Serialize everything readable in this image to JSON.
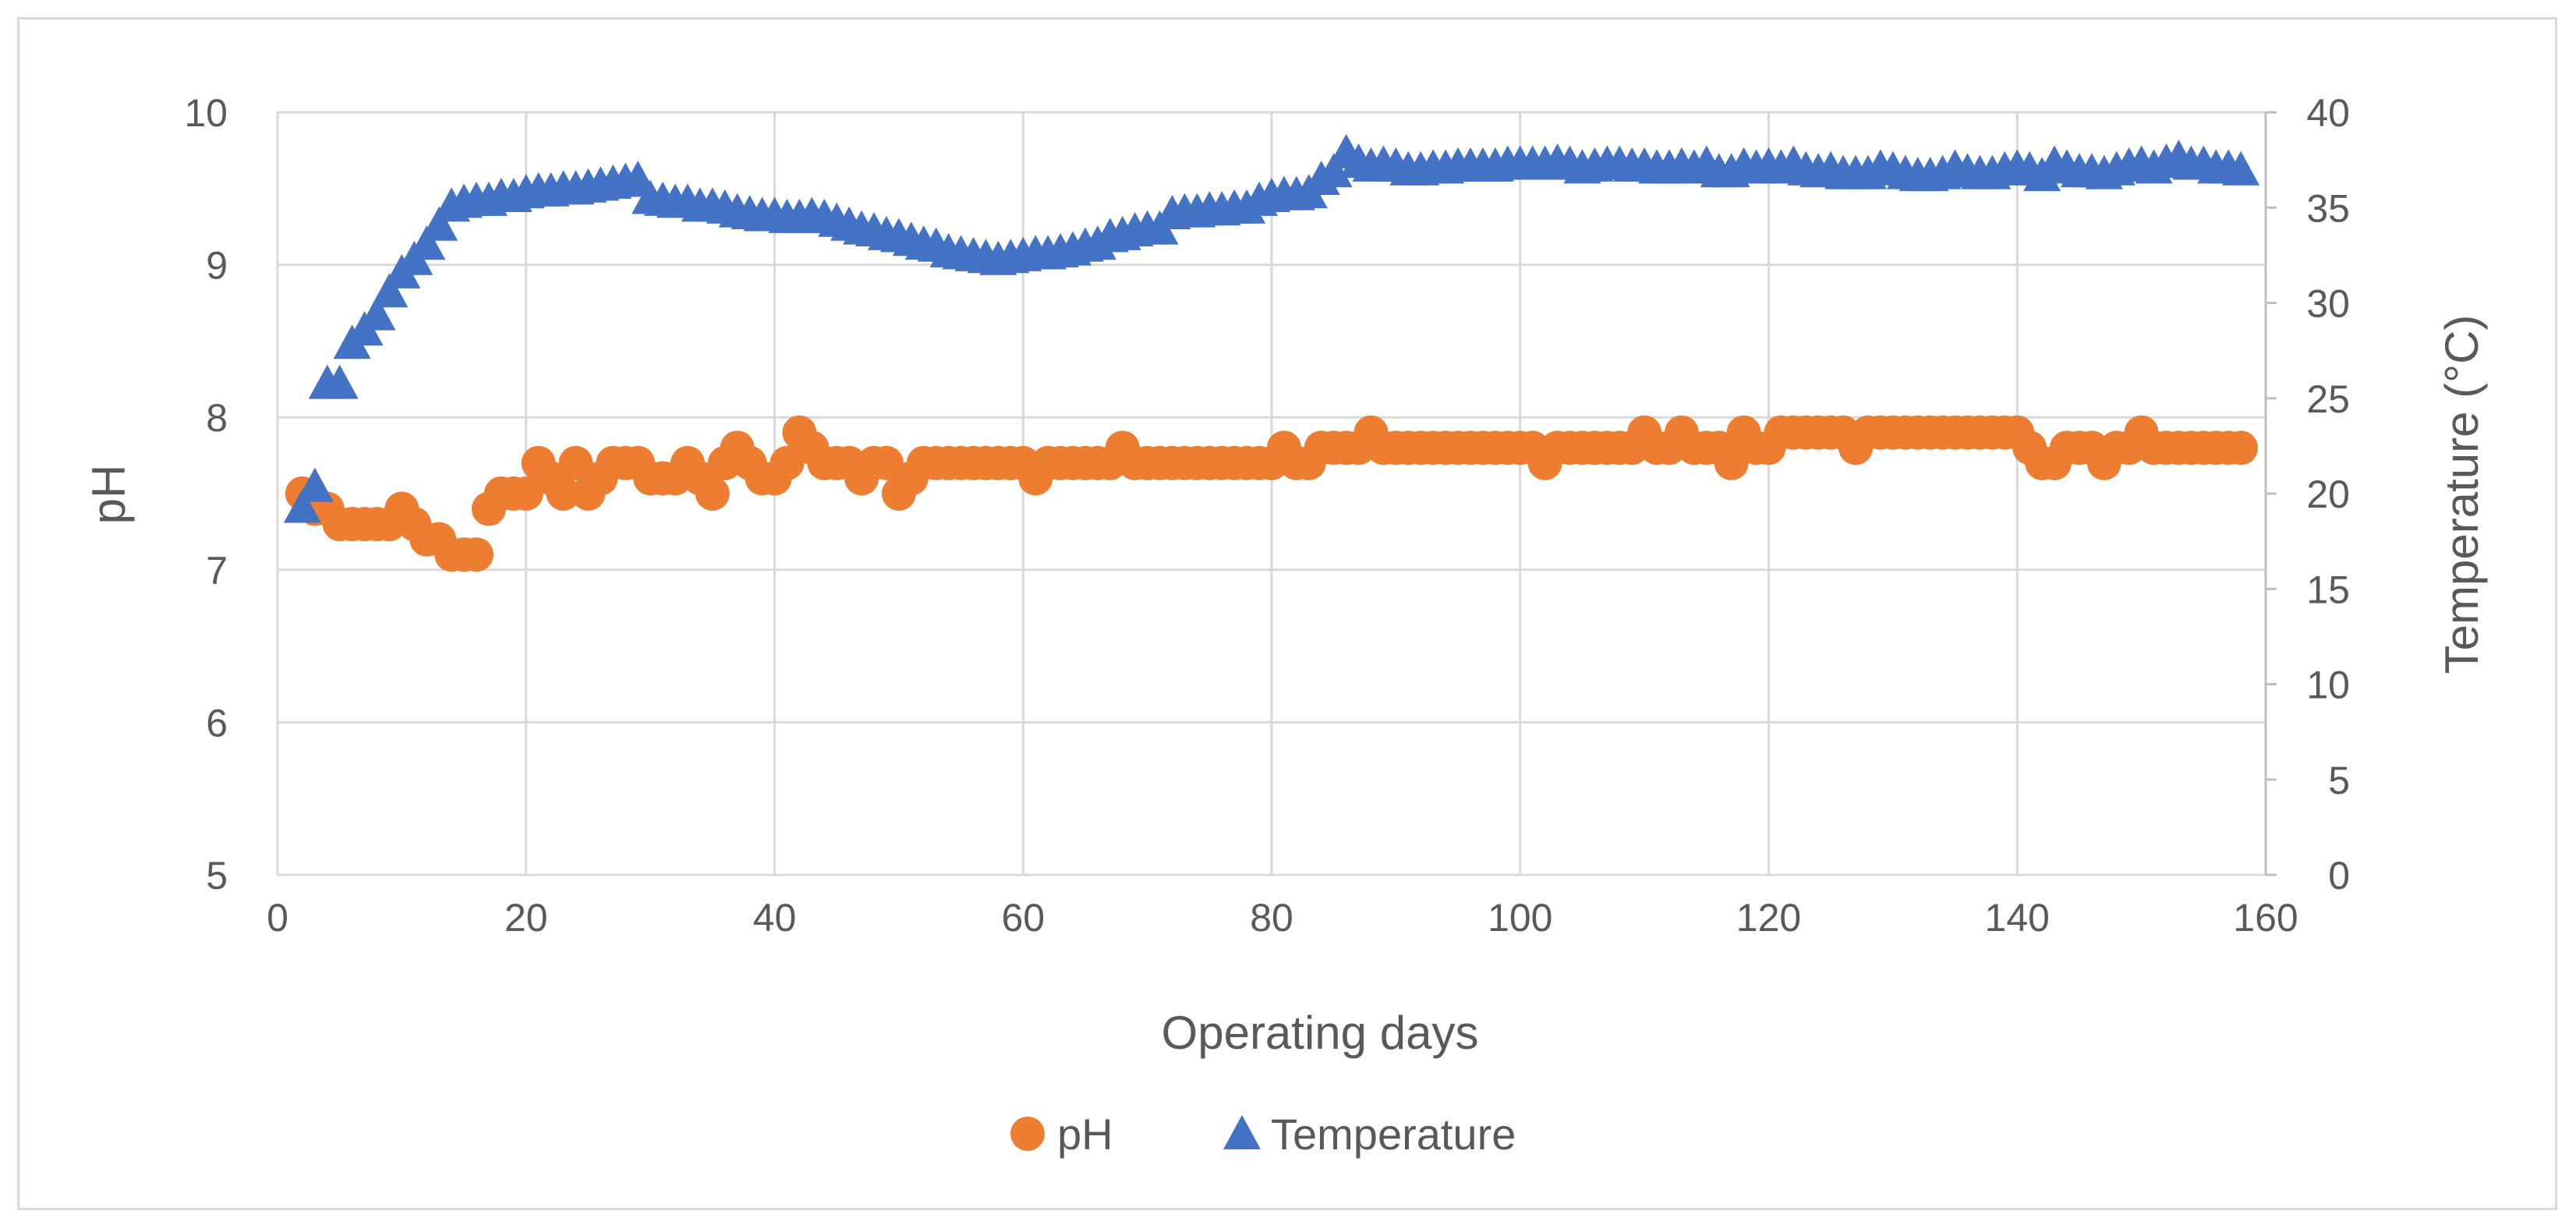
{
  "chart_data": {
    "type": "scatter",
    "title": "",
    "xlabel": "Operating days",
    "ylabel": "pH",
    "y2label": "Temperature (°C)",
    "xlim": [
      0,
      160
    ],
    "ylim": [
      5,
      10
    ],
    "y2lim": [
      0,
      40
    ],
    "x_ticks": [
      0,
      20,
      40,
      60,
      80,
      100,
      120,
      140,
      160
    ],
    "y_ticks": [
      5,
      6,
      7,
      8,
      9,
      10
    ],
    "y2_ticks": [
      0,
      5,
      10,
      15,
      20,
      25,
      30,
      35,
      40
    ],
    "grid": true,
    "legend_position": "bottom",
    "colors": {
      "ph": "#ED7D31",
      "temperature": "#4472C4",
      "grid": "#d9d9d9",
      "text": "#595959"
    },
    "series": [
      {
        "name": "pH",
        "axis": "left",
        "marker": "circle",
        "x": [
          2,
          3,
          4,
          5,
          6,
          7,
          8,
          9,
          10,
          11,
          12,
          13,
          14,
          15,
          16,
          17,
          18,
          19,
          20,
          21,
          22,
          23,
          24,
          25,
          26,
          27,
          28,
          29,
          30,
          31,
          32,
          33,
          34,
          35,
          36,
          37,
          38,
          39,
          40,
          41,
          42,
          43,
          44,
          45,
          46,
          47,
          48,
          49,
          50,
          51,
          52,
          53,
          54,
          55,
          56,
          57,
          58,
          59,
          60,
          61,
          62,
          63,
          64,
          65,
          66,
          67,
          68,
          69,
          70,
          71,
          72,
          73,
          74,
          75,
          76,
          77,
          78,
          79,
          80,
          81,
          82,
          83,
          84,
          85,
          86,
          87,
          88,
          89,
          90,
          91,
          92,
          93,
          94,
          95,
          96,
          97,
          98,
          99,
          100,
          101,
          102,
          103,
          104,
          105,
          106,
          107,
          108,
          109,
          110,
          111,
          112,
          113,
          114,
          115,
          116,
          117,
          118,
          119,
          120,
          121,
          122,
          123,
          124,
          125,
          126,
          127,
          128,
          129,
          130,
          131,
          132,
          133,
          134,
          135,
          136,
          137,
          138,
          139,
          140,
          141,
          142,
          143,
          144,
          145,
          146,
          147,
          148,
          149,
          150,
          151,
          152,
          153,
          154,
          155,
          156,
          157,
          158
        ],
        "values": [
          7.5,
          7.4,
          7.4,
          7.3,
          7.3,
          7.3,
          7.3,
          7.3,
          7.4,
          7.3,
          7.2,
          7.2,
          7.1,
          7.1,
          7.1,
          7.4,
          7.5,
          7.5,
          7.5,
          7.7,
          7.6,
          7.5,
          7.7,
          7.5,
          7.6,
          7.7,
          7.7,
          7.7,
          7.6,
          7.6,
          7.6,
          7.7,
          7.6,
          7.5,
          7.7,
          7.8,
          7.7,
          7.6,
          7.6,
          7.7,
          7.9,
          7.8,
          7.7,
          7.7,
          7.7,
          7.6,
          7.7,
          7.7,
          7.5,
          7.6,
          7.7,
          7.7,
          7.7,
          7.7,
          7.7,
          7.7,
          7.7,
          7.7,
          7.7,
          7.6,
          7.7,
          7.7,
          7.7,
          7.7,
          7.7,
          7.7,
          7.8,
          7.7,
          7.7,
          7.7,
          7.7,
          7.7,
          7.7,
          7.7,
          7.7,
          7.7,
          7.7,
          7.7,
          7.7,
          7.8,
          7.7,
          7.7,
          7.8,
          7.8,
          7.8,
          7.8,
          7.9,
          7.8,
          7.8,
          7.8,
          7.8,
          7.8,
          7.8,
          7.8,
          7.8,
          7.8,
          7.8,
          7.8,
          7.8,
          7.8,
          7.7,
          7.8,
          7.8,
          7.8,
          7.8,
          7.8,
          7.8,
          7.8,
          7.9,
          7.8,
          7.8,
          7.9,
          7.8,
          7.8,
          7.8,
          7.7,
          7.9,
          7.8,
          7.8,
          7.9,
          7.9,
          7.9,
          7.9,
          7.9,
          7.9,
          7.8,
          7.9,
          7.9,
          7.9,
          7.9,
          7.9,
          7.9,
          7.9,
          7.9,
          7.9,
          7.9,
          7.9,
          7.9,
          7.9,
          7.8,
          7.7,
          7.7,
          7.8,
          7.8,
          7.8,
          7.7,
          7.8,
          7.8,
          7.9,
          7.8,
          7.8,
          7.8,
          7.8,
          7.8,
          7.8,
          7.8,
          7.8
        ]
      },
      {
        "name": "Temperature",
        "axis": "right",
        "marker": "triangle",
        "x": [
          2,
          3,
          4,
          5,
          6,
          7,
          8,
          9,
          10,
          11,
          12,
          13,
          14,
          15,
          16,
          17,
          18,
          19,
          20,
          21,
          22,
          23,
          24,
          25,
          26,
          27,
          28,
          29,
          30,
          31,
          32,
          33,
          34,
          35,
          36,
          37,
          38,
          39,
          40,
          41,
          42,
          43,
          44,
          45,
          46,
          47,
          48,
          49,
          50,
          51,
          52,
          53,
          54,
          55,
          56,
          57,
          58,
          59,
          60,
          61,
          62,
          63,
          64,
          65,
          66,
          67,
          68,
          69,
          70,
          71,
          72,
          73,
          74,
          75,
          76,
          77,
          78,
          79,
          80,
          81,
          82,
          83,
          84,
          85,
          86,
          87,
          88,
          89,
          90,
          91,
          92,
          93,
          94,
          95,
          96,
          97,
          98,
          99,
          100,
          101,
          102,
          103,
          104,
          105,
          106,
          107,
          108,
          109,
          110,
          111,
          112,
          113,
          114,
          115,
          116,
          117,
          118,
          119,
          120,
          121,
          122,
          123,
          124,
          125,
          126,
          127,
          128,
          129,
          130,
          131,
          132,
          133,
          134,
          135,
          136,
          137,
          138,
          139,
          140,
          141,
          142,
          143,
          144,
          145,
          146,
          147,
          148,
          149,
          150,
          151,
          152,
          153,
          154,
          155,
          156,
          157,
          158
        ],
        "values": [
          19.2,
          20.3,
          25.7,
          25.7,
          27.8,
          28.5,
          29.3,
          30.5,
          31.5,
          32.2,
          33.0,
          34.0,
          35.0,
          35.2,
          35.3,
          35.3,
          35.5,
          35.5,
          35.7,
          35.8,
          35.8,
          35.9,
          35.9,
          36.0,
          36.1,
          36.2,
          36.3,
          36.4,
          35.4,
          35.3,
          35.2,
          35.2,
          35.0,
          35.0,
          34.9,
          34.7,
          34.6,
          34.5,
          34.5,
          34.4,
          34.4,
          34.5,
          34.4,
          34.2,
          34.0,
          33.8,
          33.7,
          33.5,
          33.4,
          33.2,
          33.0,
          32.9,
          32.6,
          32.5,
          32.4,
          32.3,
          32.2,
          32.3,
          32.4,
          32.5,
          32.5,
          32.6,
          32.7,
          32.9,
          33.0,
          33.4,
          33.5,
          33.7,
          33.8,
          33.8,
          34.6,
          34.7,
          34.7,
          34.8,
          34.8,
          34.9,
          34.9,
          35.3,
          35.5,
          35.6,
          35.6,
          35.7,
          36.4,
          36.8,
          37.8,
          37.3,
          37.1,
          37.2,
          37.1,
          36.9,
          36.9,
          37.0,
          37.0,
          37.1,
          37.1,
          37.1,
          37.1,
          37.2,
          37.2,
          37.2,
          37.2,
          37.3,
          37.2,
          37.0,
          37.1,
          37.2,
          37.2,
          37.1,
          37.1,
          37.0,
          37.0,
          37.1,
          37.0,
          37.2,
          36.8,
          36.8,
          37.1,
          37.0,
          37.1,
          37.0,
          37.2,
          36.9,
          36.8,
          36.9,
          36.7,
          36.7,
          36.7,
          37.0,
          36.9,
          36.7,
          36.6,
          36.6,
          36.7,
          37.0,
          36.8,
          36.7,
          36.7,
          36.9,
          37.0,
          36.9,
          36.6,
          37.2,
          37.0,
          36.8,
          36.8,
          36.7,
          36.9,
          37.1,
          37.2,
          37.0,
          37.3,
          37.5,
          37.2,
          37.2,
          37.0,
          37.0,
          36.9
        ]
      }
    ]
  }
}
